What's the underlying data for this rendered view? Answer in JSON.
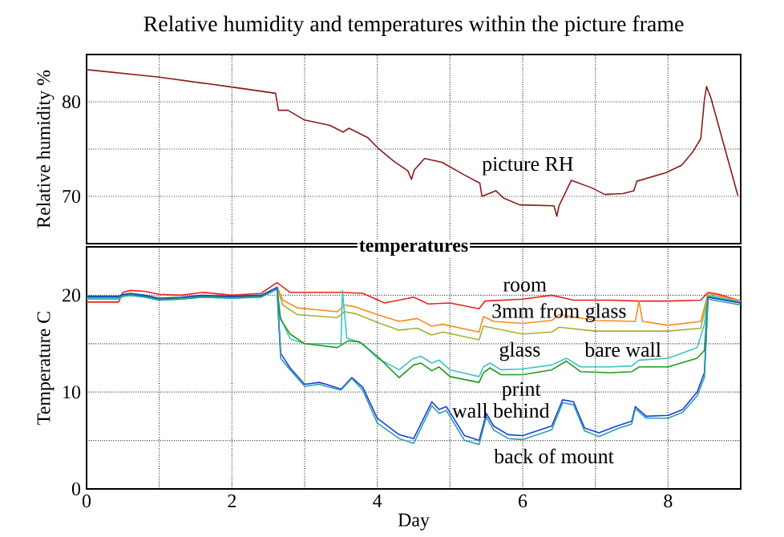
{
  "chart_data": [
    {
      "type": "line",
      "title": "Relative humidity and temperatures within the picture frame",
      "ylabel": "Relative humidity %",
      "xlim": [
        0,
        9
      ],
      "ylim": [
        65,
        85
      ],
      "xticks": [
        0,
        {
          "value": 1,
          "label": null
        },
        2,
        {
          "value": 3,
          "label": null
        },
        4,
        {
          "value": 5,
          "label": null
        },
        6,
        {
          "value": 7,
          "label": null
        },
        8
      ],
      "yticks": [
        70,
        {
          "value": 75,
          "label": null
        },
        80
      ],
      "grid": true,
      "tick_labels": "y",
      "series": [
        {
          "name": "picture RH",
          "color": "#8b1a1a",
          "x": [
            0,
            1,
            1.96,
            2.6,
            2.64,
            2.77,
            2.99,
            3.35,
            3.53,
            3.61,
            3.87,
            4.01,
            4.23,
            4.42,
            4.47,
            4.51,
            4.65,
            4.89,
            5.19,
            5.41,
            5.44,
            5.63,
            5.74,
            5.96,
            6.43,
            6.47,
            6.5,
            6.67,
            6.95,
            7.13,
            7.38,
            7.53,
            7.57,
            7.97,
            8.19,
            8.34,
            8.45,
            8.5,
            8.53,
            8.59,
            8.96
          ],
          "values": [
            83.4,
            82.6,
            81.6,
            80.9,
            79.1,
            79.1,
            78.1,
            77.5,
            76.8,
            77.2,
            76.2,
            75.1,
            73.7,
            72.7,
            71.8,
            72.8,
            74.0,
            73.6,
            72.3,
            71.4,
            70.0,
            70.6,
            69.8,
            69.1,
            69.0,
            67.9,
            69.0,
            71.7,
            70.9,
            70.2,
            70.3,
            70.6,
            71.6,
            72.5,
            73.3,
            74.7,
            76.1,
            80.2,
            81.6,
            80.4,
            70.1
          ]
        }
      ]
    },
    {
      "type": "line",
      "title": "temperatures",
      "xlabel": "Day",
      "ylabel": "Temperature  C",
      "xlim": [
        0,
        9
      ],
      "ylim": [
        0,
        25
      ],
      "xticks": [
        0,
        {
          "value": 1,
          "label": null
        },
        2,
        {
          "value": 3,
          "label": null
        },
        4,
        {
          "value": 5,
          "label": null
        },
        6,
        {
          "value": 7,
          "label": null
        },
        8
      ],
      "yticks": [
        0,
        {
          "value": 5,
          "label": null
        },
        10,
        {
          "value": 15,
          "label": null
        },
        20
      ],
      "grid": true,
      "series": [
        {
          "name": "room",
          "color": "#e8231e",
          "x": [
            0,
            0.44,
            0.5,
            0.6,
            0.8,
            1.0,
            1.3,
            1.6,
            2.0,
            2.4,
            2.62,
            2.8,
            3.5,
            3.8,
            4.1,
            4.5,
            4.7,
            5.0,
            5.4,
            5.48,
            6.0,
            6.4,
            6.7,
            7.2,
            7.6,
            8.0,
            8.45,
            8.55,
            8.7,
            9.0
          ],
          "values": [
            19.3,
            19.3,
            20.3,
            20.5,
            20.4,
            20.1,
            20.0,
            20.3,
            20.0,
            20.2,
            21.3,
            20.3,
            20.3,
            20.2,
            19.2,
            19.8,
            19.1,
            19.2,
            18.6,
            19.4,
            19.6,
            20.0,
            19.5,
            19.5,
            19.4,
            19.4,
            19.5,
            20.3,
            20.1,
            19.4
          ]
        },
        {
          "name": "3mm from glass",
          "color": "#ff8a1c",
          "x": [
            2.62,
            2.7,
            2.9,
            3.45,
            3.55,
            3.7,
            4.0,
            4.3,
            4.55,
            4.75,
            4.9,
            5.4,
            5.46,
            5.6,
            6.0,
            6.4,
            6.5,
            7.0,
            7.55,
            7.6,
            7.65,
            8.0,
            8.45,
            8.55,
            9.0
          ],
          "values": [
            20.9,
            19.5,
            18.7,
            18.3,
            19.0,
            18.8,
            18.0,
            17.3,
            17.6,
            16.8,
            17.0,
            16.2,
            17.8,
            17.3,
            17.1,
            17.4,
            18.0,
            17.4,
            17.3,
            19.4,
            17.3,
            16.9,
            17.3,
            20.2,
            19.4
          ]
        },
        {
          "name": "glass",
          "color": "#a8b02a",
          "x": [
            2.62,
            2.7,
            2.9,
            3.45,
            3.55,
            3.7,
            4.0,
            4.3,
            4.55,
            4.75,
            4.9,
            5.4,
            5.46,
            5.6,
            6.0,
            6.4,
            6.5,
            7.0,
            7.6,
            8.0,
            8.45,
            8.55,
            9.0
          ],
          "values": [
            20.8,
            19.0,
            18.0,
            17.7,
            18.3,
            18.1,
            17.2,
            16.4,
            16.6,
            15.9,
            16.2,
            15.4,
            16.8,
            16.6,
            16.0,
            16.2,
            16.7,
            16.3,
            16.3,
            16.3,
            16.6,
            19.9,
            19.3
          ]
        },
        {
          "name": "bare wall",
          "color": "#3cc4c4",
          "x": [
            0,
            0.44,
            0.5,
            0.6,
            0.8,
            1.0,
            1.3,
            1.6,
            2.0,
            2.4,
            2.62,
            2.65,
            2.8,
            3.0,
            3.5,
            3.52,
            3.58,
            3.8,
            4.0,
            4.3,
            4.5,
            4.6,
            4.75,
            4.85,
            5.0,
            5.4,
            5.46,
            5.55,
            5.7,
            6.0,
            6.4,
            6.6,
            6.8,
            7.2,
            7.5,
            7.6,
            8.0,
            8.4,
            8.5,
            8.55,
            9.0
          ],
          "values": [
            19.6,
            19.6,
            19.9,
            20.0,
            19.8,
            19.5,
            19.6,
            19.8,
            19.7,
            19.8,
            20.8,
            18.0,
            15.5,
            15.0,
            15.0,
            20.5,
            15.6,
            15.0,
            13.5,
            12.3,
            13.5,
            13.7,
            13.0,
            13.3,
            12.3,
            11.6,
            12.6,
            13.0,
            12.3,
            12.4,
            12.8,
            13.5,
            12.6,
            12.6,
            12.7,
            13.3,
            13.5,
            14.6,
            17.0,
            20.0,
            19.3
          ]
        },
        {
          "name": "print",
          "color": "#1f9a1f",
          "x": [
            0,
            0.44,
            0.5,
            0.6,
            0.8,
            1.0,
            1.3,
            1.6,
            2.0,
            2.4,
            2.62,
            2.67,
            2.8,
            3.0,
            3.45,
            3.6,
            3.75,
            4.0,
            4.3,
            4.5,
            4.6,
            4.75,
            4.85,
            5.0,
            5.4,
            5.46,
            5.55,
            5.7,
            6.0,
            6.4,
            6.6,
            6.8,
            7.2,
            7.5,
            7.6,
            8.0,
            8.4,
            8.5,
            8.55,
            9.0
          ],
          "values": [
            19.8,
            19.8,
            20.0,
            20.1,
            19.9,
            19.6,
            19.7,
            19.9,
            19.8,
            19.9,
            20.8,
            17.5,
            16.0,
            15.0,
            14.6,
            15.3,
            15.2,
            13.7,
            11.5,
            12.8,
            13.0,
            12.2,
            12.6,
            11.6,
            11.0,
            12.0,
            12.5,
            11.8,
            11.8,
            12.3,
            13.2,
            12.1,
            12.0,
            12.1,
            12.6,
            12.6,
            13.5,
            14.3,
            19.8,
            19.2
          ]
        },
        {
          "name": "wall behind",
          "color": "#1c3ee0",
          "x": [
            0,
            0.44,
            0.5,
            0.6,
            0.8,
            1.0,
            1.3,
            1.6,
            2.0,
            2.4,
            2.62,
            2.67,
            2.8,
            3.0,
            3.2,
            3.3,
            3.5,
            3.65,
            3.8,
            4.0,
            4.3,
            4.5,
            4.75,
            4.85,
            4.95,
            5.2,
            5.4,
            5.5,
            5.6,
            5.8,
            6.0,
            6.4,
            6.55,
            6.7,
            6.85,
            7.05,
            7.3,
            7.5,
            7.55,
            7.7,
            8.0,
            8.2,
            8.4,
            8.5,
            8.55,
            9.0
          ],
          "values": [
            19.9,
            19.9,
            20.1,
            20.2,
            20.0,
            19.7,
            19.8,
            20.0,
            19.9,
            20.0,
            20.8,
            14.0,
            12.5,
            10.8,
            11.0,
            10.8,
            10.3,
            11.5,
            10.5,
            7.3,
            5.6,
            5.2,
            9.0,
            8.2,
            8.5,
            5.5,
            5.0,
            7.8,
            6.5,
            5.6,
            5.5,
            6.5,
            9.2,
            9.0,
            6.3,
            5.8,
            6.5,
            7.0,
            8.5,
            7.5,
            7.6,
            8.2,
            10.0,
            12.0,
            19.8,
            19.2
          ]
        },
        {
          "name": "back of mount",
          "color": "#2aa0a8",
          "x": [
            0,
            0.44,
            0.5,
            0.6,
            0.8,
            1.0,
            1.3,
            1.6,
            2.0,
            2.4,
            2.62,
            2.67,
            2.8,
            3.0,
            3.2,
            3.3,
            3.5,
            3.65,
            3.8,
            4.0,
            4.3,
            4.5,
            4.75,
            4.85,
            4.95,
            5.2,
            5.4,
            5.5,
            5.6,
            5.8,
            6.0,
            6.4,
            6.55,
            6.7,
            6.85,
            7.05,
            7.3,
            7.5,
            7.55,
            7.7,
            8.0,
            8.2,
            8.4,
            8.5,
            8.55,
            9.0
          ],
          "values": [
            19.7,
            19.7,
            19.9,
            20.0,
            19.8,
            19.5,
            19.6,
            19.8,
            19.7,
            19.8,
            20.6,
            13.5,
            12.3,
            10.6,
            10.8,
            10.6,
            10.2,
            11.4,
            10.2,
            6.8,
            5.2,
            4.7,
            8.6,
            7.8,
            8.1,
            5.0,
            4.6,
            7.4,
            6.1,
            5.2,
            5.1,
            6.1,
            8.9,
            8.7,
            6.0,
            5.4,
            6.2,
            6.7,
            8.3,
            7.3,
            7.3,
            7.9,
            9.6,
            11.5,
            19.6,
            19.0
          ]
        }
      ]
    }
  ]
}
